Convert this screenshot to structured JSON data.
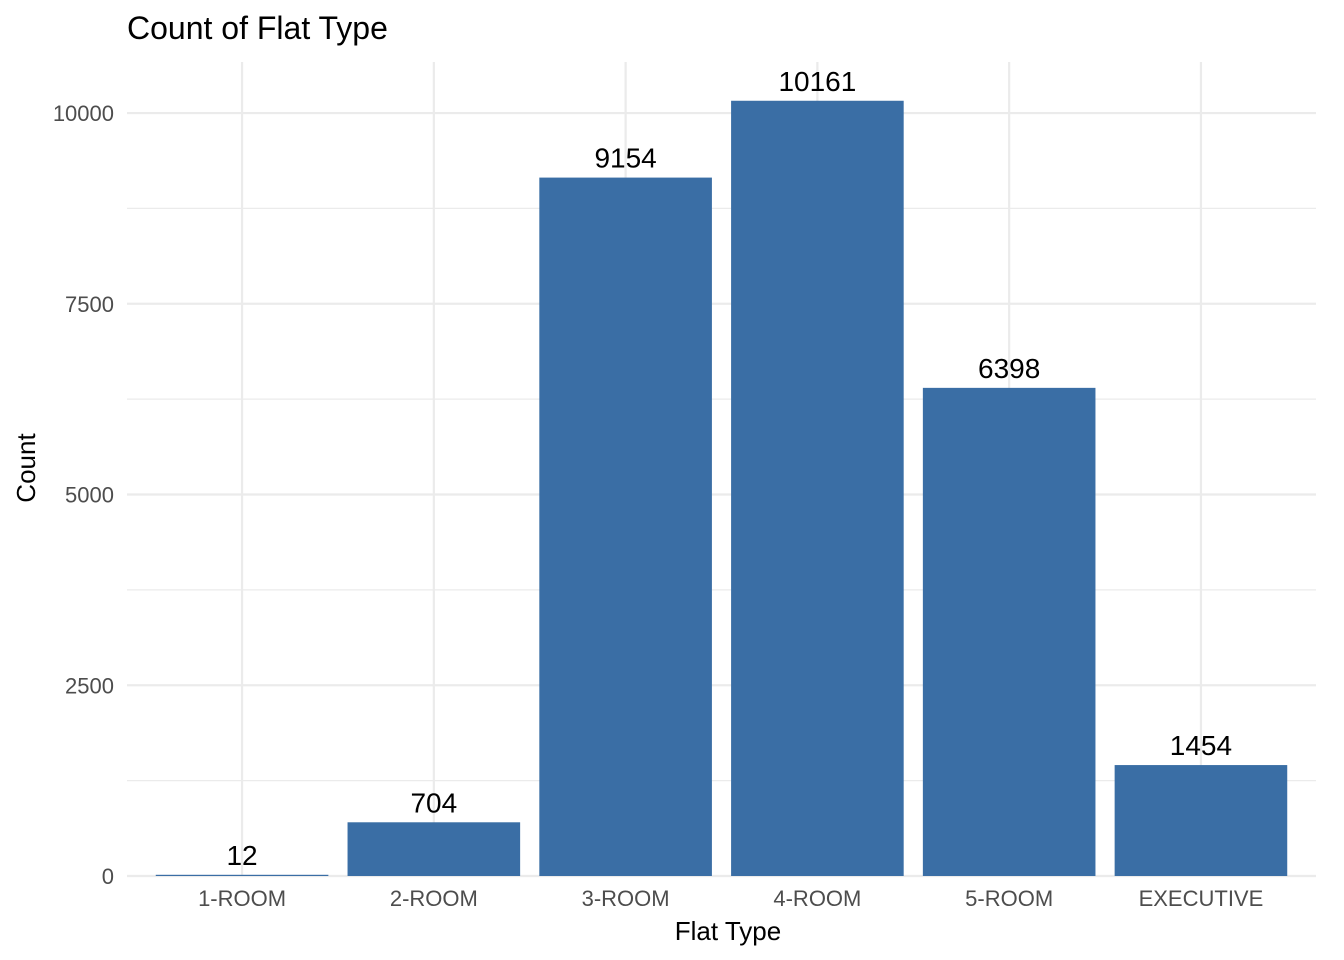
{
  "chart_data": {
    "type": "bar",
    "title": "Count of Flat Type",
    "xlabel": "Flat Type",
    "ylabel": "Count",
    "categories": [
      "1-ROOM",
      "2-ROOM",
      "3-ROOM",
      "4-ROOM",
      "5-ROOM",
      "EXECUTIVE"
    ],
    "values": [
      12,
      704,
      9154,
      10161,
      6398,
      1454
    ],
    "data_labels": [
      "12",
      "704",
      "9154",
      "10161",
      "6398",
      "1454"
    ],
    "yticks": [
      0,
      2500,
      5000,
      7500,
      10000
    ],
    "ytick_labels": [
      "0",
      "2500",
      "5000",
      "7500",
      "10000"
    ],
    "ylim": [
      0,
      10669
    ],
    "grid": true,
    "legend": "none",
    "bar_color": "#3a6ea5"
  }
}
